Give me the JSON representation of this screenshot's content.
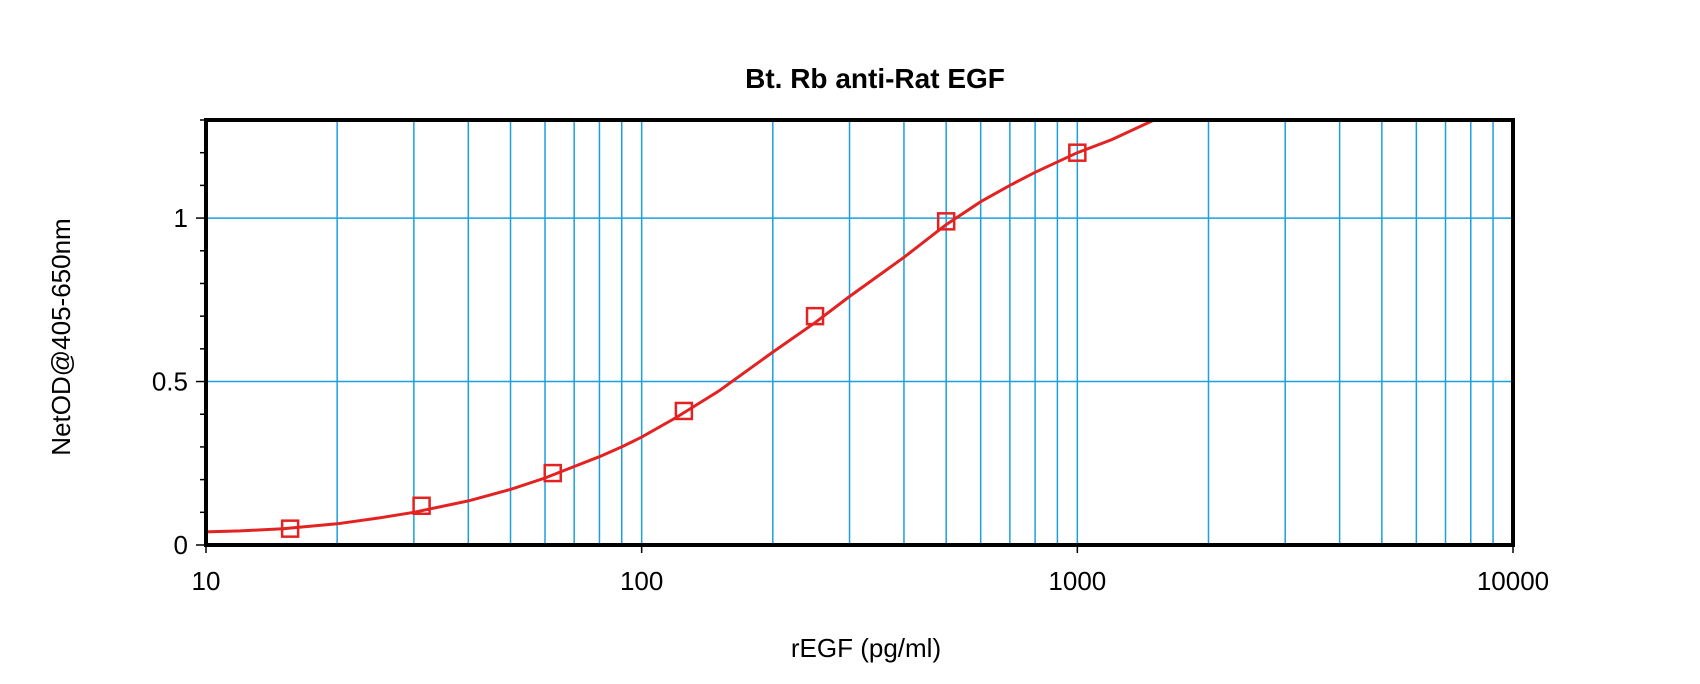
{
  "chart_data": {
    "type": "scatter",
    "title": "Bt. Rb anti-Rat EGF",
    "xlabel": "rEGF (pg/ml)",
    "ylabel": "NetOD@405-650nm",
    "x_scale": "log",
    "xlim": [
      10,
      10000
    ],
    "ylim": [
      0,
      1.3
    ],
    "x_tick_labels": [
      "10",
      "100",
      "1000",
      "10000"
    ],
    "y_tick_labels": [
      "0",
      "0.5",
      "1"
    ],
    "grid": true,
    "series": [
      {
        "x": [
          15.6,
          31.25,
          62.5,
          125,
          250,
          500,
          1000
        ],
        "y": [
          0.05,
          0.12,
          0.22,
          0.41,
          0.7,
          0.99,
          1.2
        ]
      }
    ],
    "fit_curve": {
      "x": [
        10,
        12,
        15,
        20,
        25,
        30,
        40,
        50,
        60,
        70,
        80,
        90,
        100,
        120,
        150,
        200,
        250,
        300,
        400,
        500,
        600,
        700,
        800,
        1000,
        1200,
        1500
      ],
      "y": [
        0.04,
        0.043,
        0.05,
        0.065,
        0.083,
        0.1,
        0.135,
        0.17,
        0.205,
        0.24,
        0.27,
        0.3,
        0.33,
        0.39,
        0.47,
        0.59,
        0.68,
        0.76,
        0.88,
        0.98,
        1.05,
        1.1,
        1.14,
        1.2,
        1.24,
        1.3
      ]
    },
    "colors": {
      "series": "#e32222",
      "grid": "#1aa0e0",
      "axis": "#000000"
    }
  }
}
